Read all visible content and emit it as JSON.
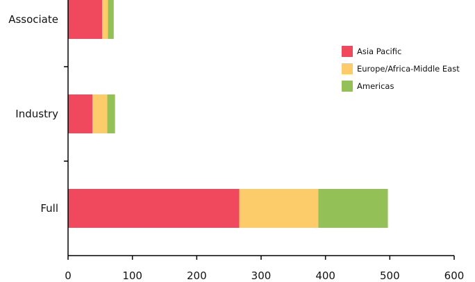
{
  "chart_data": {
    "type": "bar",
    "orientation": "horizontal",
    "stacked": true,
    "title": "",
    "xlabel": "",
    "ylabel": "",
    "categories": [
      "Associate",
      "Industry",
      "Full"
    ],
    "series": [
      {
        "name": "Asia Pacific",
        "color": "#f0485c",
        "values": [
          53,
          38,
          266
        ]
      },
      {
        "name": "Europe/Africa-Middle East",
        "color": "#fccb6a",
        "values": [
          9,
          23,
          123
        ]
      },
      {
        "name": "Americas",
        "color": "#93c057",
        "values": [
          9,
          12,
          108
        ]
      }
    ],
    "xlim": [
      0,
      600
    ],
    "xticks": [
      "0",
      "100",
      "200",
      "300",
      "400",
      "500",
      "600"
    ],
    "grid": false,
    "legend_position": "right"
  }
}
